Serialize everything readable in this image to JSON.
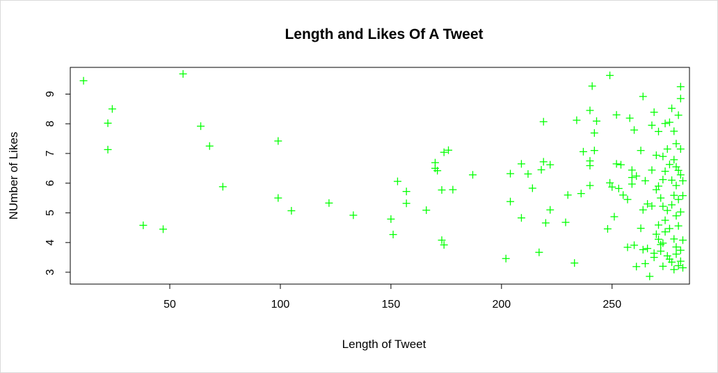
{
  "chart_data": {
    "type": "scatter",
    "title": "Length and Likes Of A Tweet",
    "xlabel": "Length of Tweet",
    "ylabel": "NUmber of Likes",
    "xlim": [
      5,
      285
    ],
    "ylim": [
      2.6,
      9.9
    ],
    "xticks": [
      50,
      100,
      150,
      200,
      250
    ],
    "yticks": [
      3,
      4,
      5,
      6,
      7,
      8,
      9
    ],
    "marker": "plus",
    "color": "#00ff00",
    "grid": false,
    "points": [
      [
        11,
        9.45
      ],
      [
        22,
        8.02
      ],
      [
        22,
        7.13
      ],
      [
        24,
        8.5
      ],
      [
        38,
        4.58
      ],
      [
        47,
        4.45
      ],
      [
        56,
        9.68
      ],
      [
        64,
        7.92
      ],
      [
        68,
        7.25
      ],
      [
        74,
        5.88
      ],
      [
        99,
        7.42
      ],
      [
        99,
        5.5
      ],
      [
        105,
        5.07
      ],
      [
        122,
        5.33
      ],
      [
        133,
        4.92
      ],
      [
        150,
        4.79
      ],
      [
        151,
        4.27
      ],
      [
        153,
        6.06
      ],
      [
        157,
        5.72
      ],
      [
        157,
        5.32
      ],
      [
        166,
        5.09
      ],
      [
        170,
        6.69
      ],
      [
        170,
        6.5
      ],
      [
        171,
        6.42
      ],
      [
        173,
        5.77
      ],
      [
        173,
        4.08
      ],
      [
        174,
        3.92
      ],
      [
        174,
        7.04
      ],
      [
        176,
        7.11
      ],
      [
        178,
        5.78
      ],
      [
        187,
        6.28
      ],
      [
        202,
        3.46
      ],
      [
        204,
        6.32
      ],
      [
        204,
        5.38
      ],
      [
        209,
        6.65
      ],
      [
        209,
        4.83
      ],
      [
        212,
        6.31
      ],
      [
        214,
        5.83
      ],
      [
        217,
        3.67
      ],
      [
        218,
        6.45
      ],
      [
        219,
        8.07
      ],
      [
        219,
        6.72
      ],
      [
        220,
        4.66
      ],
      [
        222,
        6.62
      ],
      [
        222,
        5.1
      ],
      [
        229,
        4.68
      ],
      [
        230,
        5.6
      ],
      [
        233,
        3.31
      ],
      [
        234,
        8.12
      ],
      [
        236,
        5.65
      ],
      [
        237,
        7.06
      ],
      [
        240,
        8.45
      ],
      [
        240,
        6.75
      ],
      [
        240,
        6.59
      ],
      [
        240,
        5.92
      ],
      [
        241,
        9.27
      ],
      [
        242,
        7.69
      ],
      [
        242,
        7.1
      ],
      [
        243,
        8.09
      ],
      [
        248,
        4.46
      ],
      [
        249,
        9.63
      ],
      [
        249,
        6.01
      ],
      [
        250,
        5.87
      ],
      [
        251,
        4.87
      ],
      [
        252,
        8.3
      ],
      [
        252,
        6.65
      ],
      [
        253,
        5.82
      ],
      [
        254,
        6.62
      ],
      [
        255,
        5.6
      ],
      [
        257,
        5.45
      ],
      [
        257,
        3.84
      ],
      [
        258,
        8.19
      ],
      [
        259,
        6.44
      ],
      [
        259,
        6.19
      ],
      [
        259,
        5.97
      ],
      [
        260,
        7.79
      ],
      [
        260,
        3.91
      ],
      [
        261,
        6.24
      ],
      [
        261,
        3.19
      ],
      [
        263,
        7.1
      ],
      [
        263,
        4.48
      ],
      [
        264,
        8.92
      ],
      [
        264,
        5.1
      ],
      [
        264,
        3.76
      ],
      [
        265,
        3.29
      ],
      [
        265,
        6.08
      ],
      [
        266,
        5.3
      ],
      [
        266,
        3.8
      ],
      [
        267,
        2.86
      ],
      [
        268,
        5.23
      ],
      [
        268,
        7.95
      ],
      [
        268,
        6.44
      ],
      [
        269,
        8.39
      ],
      [
        269,
        3.5
      ],
      [
        269,
        3.64
      ],
      [
        270,
        6.94
      ],
      [
        270,
        5.78
      ],
      [
        270,
        4.28
      ],
      [
        271,
        7.74
      ],
      [
        271,
        5.9
      ],
      [
        271,
        4.59
      ],
      [
        271,
        4.11
      ],
      [
        272,
        5.5
      ],
      [
        272,
        3.71
      ],
      [
        272,
        3.93
      ],
      [
        273,
        6.9
      ],
      [
        273,
        6.12
      ],
      [
        273,
        5.22
      ],
      [
        273,
        3.98
      ],
      [
        273,
        3.2
      ],
      [
        274,
        8.01
      ],
      [
        274,
        6.4
      ],
      [
        274,
        4.75
      ],
      [
        274,
        4.36
      ],
      [
        275,
        7.15
      ],
      [
        275,
        5.08
      ],
      [
        275,
        3.55
      ],
      [
        276,
        8.05
      ],
      [
        276,
        6.63
      ],
      [
        276,
        4.47
      ],
      [
        276,
        3.44
      ],
      [
        277,
        8.52
      ],
      [
        277,
        6.1
      ],
      [
        277,
        5.27
      ],
      [
        277,
        3.34
      ],
      [
        278,
        7.75
      ],
      [
        278,
        6.79
      ],
      [
        278,
        5.59
      ],
      [
        278,
        4.12
      ],
      [
        278,
        3.09
      ],
      [
        279,
        7.33
      ],
      [
        279,
        6.55
      ],
      [
        279,
        5.92
      ],
      [
        279,
        4.9
      ],
      [
        279,
        3.85
      ],
      [
        279,
        3.61
      ],
      [
        280,
        8.29
      ],
      [
        280,
        6.43
      ],
      [
        280,
        5.45
      ],
      [
        280,
        4.56
      ],
      [
        280,
        3.22
      ],
      [
        281,
        9.25
      ],
      [
        281,
        8.85
      ],
      [
        281,
        7.15
      ],
      [
        281,
        6.28
      ],
      [
        281,
        5.03
      ],
      [
        281,
        3.74
      ],
      [
        281,
        3.37
      ],
      [
        282,
        6.08
      ],
      [
        282,
        5.58
      ],
      [
        282,
        4.08
      ],
      [
        282,
        3.15
      ]
    ]
  }
}
